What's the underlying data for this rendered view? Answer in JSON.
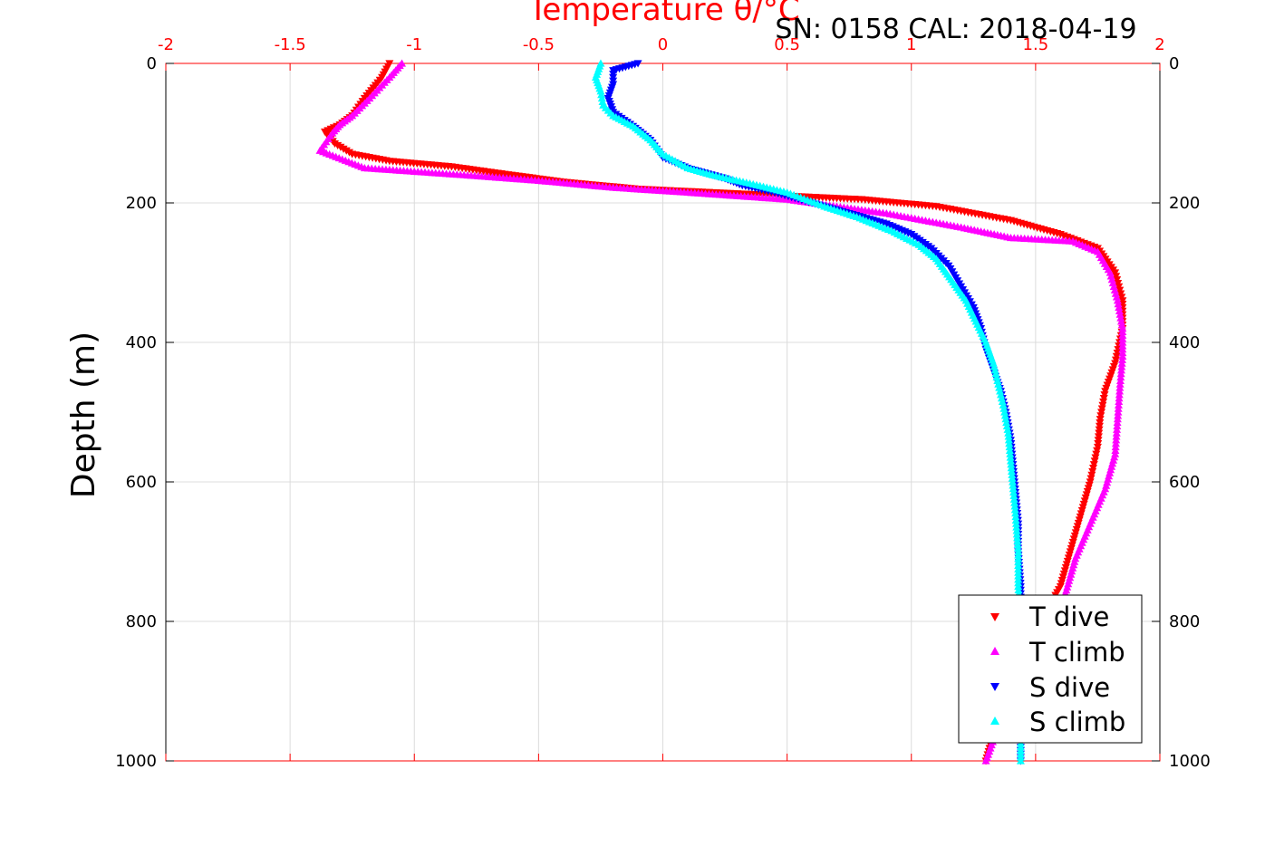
{
  "chart_data": {
    "type": "scatter",
    "title": "SN: 0158  CAL: 2018-04-19",
    "xlabel": "Temperature θ/°C",
    "ylabel": "Depth (m)",
    "xlim": [
      -2,
      2
    ],
    "ylim": [
      0,
      1000
    ],
    "y_reversed": true,
    "x_ticks": [
      "-2",
      "-1.5",
      "-1",
      "-0.5",
      "0",
      "0.5",
      "1",
      "1.5",
      "2"
    ],
    "y_ticks": [
      "0",
      "200",
      "400",
      "600",
      "800",
      "1000"
    ],
    "grid": true,
    "legend_position": "bottom-right",
    "series": [
      {
        "name": "T dive",
        "color": "#ff0000",
        "marker": "triangle-down",
        "points": [
          [
            -1.1,
            0
          ],
          [
            -1.13,
            20
          ],
          [
            -1.2,
            50
          ],
          [
            -1.25,
            75
          ],
          [
            -1.3,
            88
          ],
          [
            -1.36,
            98
          ],
          [
            -1.32,
            115
          ],
          [
            -1.25,
            130
          ],
          [
            -1.1,
            140
          ],
          [
            -0.85,
            148
          ],
          [
            -0.65,
            158
          ],
          [
            -0.4,
            170
          ],
          [
            -0.1,
            180
          ],
          [
            0.2,
            185
          ],
          [
            0.5,
            190
          ],
          [
            0.8,
            195
          ],
          [
            1.1,
            205
          ],
          [
            1.4,
            225
          ],
          [
            1.6,
            245
          ],
          [
            1.75,
            265
          ],
          [
            1.82,
            300
          ],
          [
            1.85,
            340
          ],
          [
            1.85,
            380
          ],
          [
            1.82,
            430
          ],
          [
            1.78,
            470
          ],
          [
            1.76,
            510
          ],
          [
            1.75,
            550
          ],
          [
            1.72,
            600
          ],
          [
            1.68,
            650
          ],
          [
            1.64,
            700
          ],
          [
            1.6,
            750
          ],
          [
            1.52,
            800
          ],
          [
            1.45,
            850
          ],
          [
            1.38,
            900
          ],
          [
            1.34,
            950
          ],
          [
            1.3,
            1000
          ]
        ]
      },
      {
        "name": "T climb",
        "color": "#ff00ff",
        "marker": "triangle-up",
        "points": [
          [
            -1.05,
            0
          ],
          [
            -1.1,
            20
          ],
          [
            -1.18,
            50
          ],
          [
            -1.25,
            75
          ],
          [
            -1.3,
            88
          ],
          [
            -1.33,
            100
          ],
          [
            -1.38,
            125
          ],
          [
            -1.2,
            150
          ],
          [
            -1.0,
            155
          ],
          [
            -0.8,
            160
          ],
          [
            -0.5,
            168
          ],
          [
            -0.2,
            178
          ],
          [
            0.1,
            185
          ],
          [
            0.5,
            195
          ],
          [
            0.9,
            215
          ],
          [
            1.2,
            235
          ],
          [
            1.4,
            250
          ],
          [
            1.65,
            255
          ],
          [
            1.75,
            270
          ],
          [
            1.8,
            300
          ],
          [
            1.83,
            340
          ],
          [
            1.85,
            380
          ],
          [
            1.85,
            420
          ],
          [
            1.84,
            460
          ],
          [
            1.83,
            510
          ],
          [
            1.82,
            560
          ],
          [
            1.78,
            610
          ],
          [
            1.72,
            660
          ],
          [
            1.66,
            710
          ],
          [
            1.62,
            760
          ],
          [
            1.55,
            800
          ],
          [
            1.48,
            850
          ],
          [
            1.42,
            900
          ],
          [
            1.35,
            950
          ],
          [
            1.3,
            1000
          ]
        ]
      },
      {
        "name": "S dive",
        "color": "#0000ff",
        "marker": "triangle-down",
        "points": [
          [
            -0.1,
            0
          ],
          [
            -0.2,
            10
          ],
          [
            -0.2,
            30
          ],
          [
            -0.22,
            50
          ],
          [
            -0.2,
            70
          ],
          [
            -0.12,
            90
          ],
          [
            -0.05,
            110
          ],
          [
            0.0,
            135
          ],
          [
            0.1,
            150
          ],
          [
            0.25,
            165
          ],
          [
            0.32,
            175
          ],
          [
            0.45,
            185
          ],
          [
            0.6,
            200
          ],
          [
            0.75,
            215
          ],
          [
            0.9,
            230
          ],
          [
            1.0,
            245
          ],
          [
            1.08,
            265
          ],
          [
            1.15,
            290
          ],
          [
            1.2,
            320
          ],
          [
            1.25,
            350
          ],
          [
            1.28,
            380
          ],
          [
            1.3,
            410
          ],
          [
            1.33,
            440
          ],
          [
            1.36,
            470
          ],
          [
            1.38,
            500
          ],
          [
            1.4,
            540
          ],
          [
            1.41,
            580
          ],
          [
            1.42,
            620
          ],
          [
            1.43,
            660
          ],
          [
            1.43,
            700
          ],
          [
            1.44,
            750
          ],
          [
            1.44,
            800
          ],
          [
            1.44,
            850
          ],
          [
            1.44,
            900
          ],
          [
            1.44,
            950
          ],
          [
            1.44,
            1000
          ]
        ]
      },
      {
        "name": "S climb",
        "color": "#00ffff",
        "marker": "triangle-up",
        "points": [
          [
            -0.25,
            0
          ],
          [
            -0.27,
            20
          ],
          [
            -0.25,
            40
          ],
          [
            -0.24,
            60
          ],
          [
            -0.2,
            75
          ],
          [
            -0.12,
            90
          ],
          [
            -0.05,
            110
          ],
          [
            0.0,
            130
          ],
          [
            0.1,
            150
          ],
          [
            0.2,
            160
          ],
          [
            0.35,
            172
          ],
          [
            0.5,
            185
          ],
          [
            0.65,
            205
          ],
          [
            0.78,
            220
          ],
          [
            0.92,
            240
          ],
          [
            1.03,
            260
          ],
          [
            1.1,
            280
          ],
          [
            1.16,
            310
          ],
          [
            1.22,
            340
          ],
          [
            1.26,
            370
          ],
          [
            1.3,
            400
          ],
          [
            1.33,
            430
          ],
          [
            1.35,
            460
          ],
          [
            1.37,
            490
          ],
          [
            1.39,
            530
          ],
          [
            1.4,
            570
          ],
          [
            1.41,
            610
          ],
          [
            1.42,
            650
          ],
          [
            1.43,
            700
          ],
          [
            1.43,
            750
          ],
          [
            1.44,
            800
          ],
          [
            1.44,
            850
          ],
          [
            1.44,
            900
          ],
          [
            1.44,
            950
          ],
          [
            1.44,
            1000
          ]
        ]
      }
    ]
  }
}
